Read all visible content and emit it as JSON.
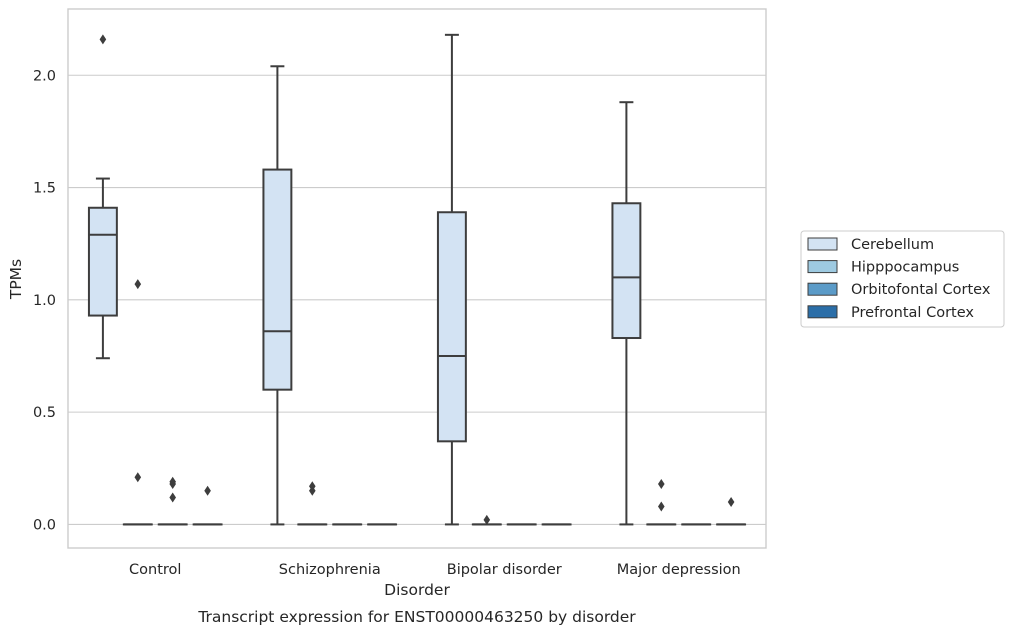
{
  "chart_data": {
    "type": "boxplot",
    "xlabel": "Disorder",
    "ylabel": "TPMs",
    "caption": "Transcript expression for ENST00000463250 by disorder",
    "ylim": [
      -0.105,
      2.295
    ],
    "yticks": [
      0.0,
      0.5,
      1.0,
      1.5,
      2.0
    ],
    "ytick_labels": [
      "0.0",
      "0.5",
      "1.0",
      "1.5",
      "2.0"
    ],
    "grid": "horizontal",
    "legend_position": "right",
    "categories": [
      "Control",
      "Schizophrenia",
      "Bipolar disorder",
      "Major depression"
    ],
    "series": [
      {
        "name": "Cerebellum",
        "color": "#d3e3f3",
        "boxes": [
          {
            "whislo": 0.74,
            "q1": 0.93,
            "med": 1.29,
            "q3": 1.41,
            "whishi": 1.54,
            "fliers": [
              2.16
            ]
          },
          {
            "whislo": 0.0,
            "q1": 0.6,
            "med": 0.86,
            "q3": 1.58,
            "whishi": 2.04,
            "fliers": []
          },
          {
            "whislo": 0.0,
            "q1": 0.37,
            "med": 0.75,
            "q3": 1.39,
            "whishi": 2.18,
            "fliers": []
          },
          {
            "whislo": 0.0,
            "q1": 0.83,
            "med": 1.1,
            "q3": 1.43,
            "whishi": 1.88,
            "fliers": []
          }
        ]
      },
      {
        "name": "Hipppocampus",
        "color": "#9ecae1",
        "boxes": [
          {
            "whislo": 0.0,
            "q1": 0.0,
            "med": 0.0,
            "q3": 0.0,
            "whishi": 0.0,
            "fliers": [
              0.21,
              1.07
            ]
          },
          {
            "whislo": 0.0,
            "q1": 0.0,
            "med": 0.0,
            "q3": 0.0,
            "whishi": 0.0,
            "fliers": [
              0.15,
              0.17
            ]
          },
          {
            "whislo": 0.0,
            "q1": 0.0,
            "med": 0.0,
            "q3": 0.0,
            "whishi": 0.0,
            "fliers": [
              0.02
            ]
          },
          {
            "whislo": 0.0,
            "q1": 0.0,
            "med": 0.0,
            "q3": 0.0,
            "whishi": 0.0,
            "fliers": [
              0.18,
              0.08
            ]
          }
        ]
      },
      {
        "name": "Orbitofontal Cortex",
        "color": "#5b9bc8",
        "boxes": [
          {
            "whislo": 0.0,
            "q1": 0.0,
            "med": 0.0,
            "q3": 0.0,
            "whishi": 0.0,
            "fliers": [
              0.18,
              0.19,
              0.12
            ]
          },
          {
            "whislo": 0.0,
            "q1": 0.0,
            "med": 0.0,
            "q3": 0.0,
            "whishi": 0.0,
            "fliers": []
          },
          {
            "whislo": 0.0,
            "q1": 0.0,
            "med": 0.0,
            "q3": 0.0,
            "whishi": 0.0,
            "fliers": []
          },
          {
            "whislo": 0.0,
            "q1": 0.0,
            "med": 0.0,
            "q3": 0.0,
            "whishi": 0.0,
            "fliers": []
          }
        ]
      },
      {
        "name": "Prefrontal Cortex",
        "color": "#2b6ea8",
        "boxes": [
          {
            "whislo": 0.0,
            "q1": 0.0,
            "med": 0.0,
            "q3": 0.0,
            "whishi": 0.0,
            "fliers": [
              0.15
            ]
          },
          {
            "whislo": 0.0,
            "q1": 0.0,
            "med": 0.0,
            "q3": 0.0,
            "whishi": 0.0,
            "fliers": []
          },
          {
            "whislo": 0.0,
            "q1": 0.0,
            "med": 0.0,
            "q3": 0.0,
            "whishi": 0.0,
            "fliers": []
          },
          {
            "whislo": 0.0,
            "q1": 0.0,
            "med": 0.0,
            "q3": 0.0,
            "whishi": 0.0,
            "fliers": [
              0.1
            ]
          }
        ]
      }
    ],
    "line_color": "#3d3d3d",
    "grid_color": "#cccccc",
    "frame_color": "#cccccc"
  }
}
